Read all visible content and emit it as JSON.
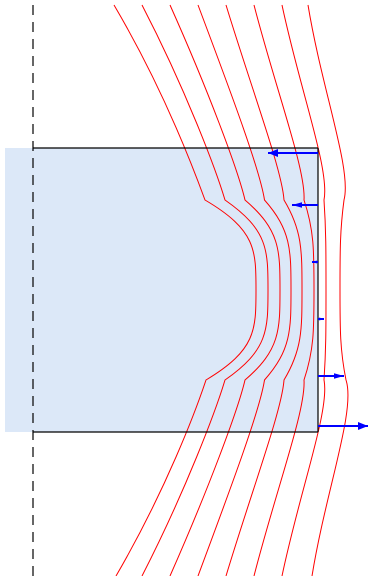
{
  "colors": {
    "background": "#ffffff",
    "region_fill": "#dce8f8",
    "region_edge": "#000000",
    "field_lines": "#ff0000",
    "arrows": "#0000ff",
    "axis": "#000000"
  },
  "elements": {
    "axis": {
      "style": "dashed",
      "orientation": "vertical"
    },
    "region": {
      "shape": "rectangle"
    },
    "field_lines": {
      "count": 8
    },
    "arrows": {
      "count": 6,
      "directions": [
        "left",
        "left",
        "left",
        "right",
        "right",
        "right"
      ]
    }
  }
}
